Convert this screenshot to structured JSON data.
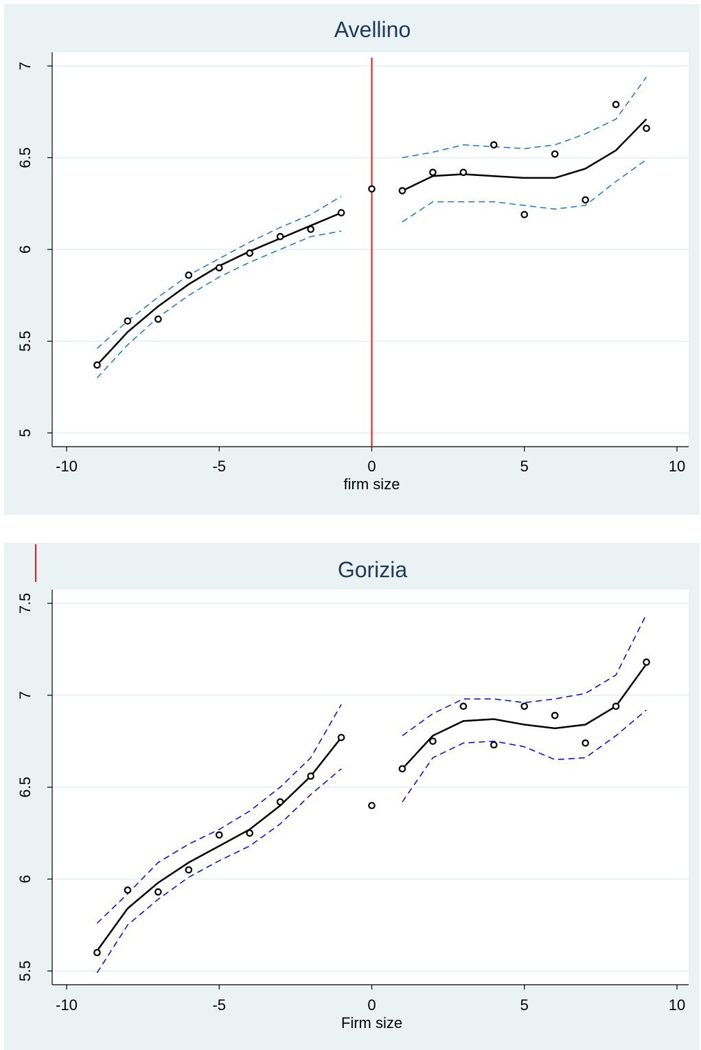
{
  "colors": {
    "panel_bg": "#eaf2f3",
    "plot_bg": "#ffffff",
    "grid": "#eaf2f3",
    "fit_line": "#000000",
    "ci_top": "#1a75cf",
    "ci_bottom": "#0000ff",
    "cutoff_line": "#e31a1c",
    "title": "#1e3a5f",
    "marker": "#000000"
  },
  "chart_data": [
    {
      "type": "scatter",
      "title": "Avellino",
      "xlabel": "firm size",
      "ylabel": "",
      "xlim": [
        -10,
        10
      ],
      "ylim": [
        5,
        7
      ],
      "xticks": [
        -10,
        -5,
        0,
        5,
        10
      ],
      "yticks": [
        5,
        5.5,
        6,
        6.5,
        7
      ],
      "grid": true,
      "cutoff": 0,
      "ci_color": "#1a75cf",
      "points": [
        [
          -9,
          5.37
        ],
        [
          -8,
          5.61
        ],
        [
          -7,
          5.62
        ],
        [
          -6,
          5.86
        ],
        [
          -5,
          5.9
        ],
        [
          -4,
          5.98
        ],
        [
          -3,
          6.07
        ],
        [
          -2,
          6.11
        ],
        [
          -1,
          6.2
        ],
        [
          0,
          6.33
        ],
        [
          1,
          6.32
        ],
        [
          2,
          6.42
        ],
        [
          3,
          6.42
        ],
        [
          4,
          6.57
        ],
        [
          5,
          6.19
        ],
        [
          6,
          6.52
        ],
        [
          7,
          6.27
        ],
        [
          8,
          6.79
        ],
        [
          9,
          6.66
        ]
      ],
      "fit_left": [
        [
          -9,
          5.37
        ],
        [
          -8,
          5.55
        ],
        [
          -7,
          5.69
        ],
        [
          -6,
          5.81
        ],
        [
          -5,
          5.91
        ],
        [
          -4,
          5.99
        ],
        [
          -3,
          6.06
        ],
        [
          -2,
          6.13
        ],
        [
          -1,
          6.2
        ]
      ],
      "ci_upper_left": [
        [
          -9,
          5.46
        ],
        [
          -8,
          5.61
        ],
        [
          -7,
          5.74
        ],
        [
          -6,
          5.86
        ],
        [
          -5,
          5.95
        ],
        [
          -4,
          6.04
        ],
        [
          -3,
          6.12
        ],
        [
          -2,
          6.19
        ],
        [
          -1,
          6.29
        ]
      ],
      "ci_lower_left": [
        [
          -9,
          5.3
        ],
        [
          -8,
          5.48
        ],
        [
          -7,
          5.63
        ],
        [
          -6,
          5.75
        ],
        [
          -5,
          5.85
        ],
        [
          -4,
          5.93
        ],
        [
          -3,
          6.0
        ],
        [
          -2,
          6.07
        ],
        [
          -1,
          6.1
        ]
      ],
      "fit_right": [
        [
          1,
          6.32
        ],
        [
          2,
          6.4
        ],
        [
          3,
          6.41
        ],
        [
          4,
          6.4
        ],
        [
          5,
          6.39
        ],
        [
          6,
          6.39
        ],
        [
          7,
          6.44
        ],
        [
          8,
          6.54
        ],
        [
          9,
          6.71
        ]
      ],
      "ci_upper_right": [
        [
          1,
          6.5
        ],
        [
          2,
          6.53
        ],
        [
          3,
          6.57
        ],
        [
          4,
          6.56
        ],
        [
          5,
          6.55
        ],
        [
          6,
          6.57
        ],
        [
          7,
          6.63
        ],
        [
          8,
          6.71
        ],
        [
          9,
          6.94
        ]
      ],
      "ci_lower_right": [
        [
          1,
          6.15
        ],
        [
          2,
          6.26
        ],
        [
          3,
          6.26
        ],
        [
          4,
          6.26
        ],
        [
          5,
          6.24
        ],
        [
          6,
          6.22
        ],
        [
          7,
          6.24
        ],
        [
          8,
          6.37
        ],
        [
          9,
          6.49
        ]
      ]
    },
    {
      "type": "scatter",
      "title": "Gorizia",
      "xlabel": "Firm size",
      "ylabel": "",
      "xlim": [
        -10,
        10
      ],
      "ylim": [
        5.5,
        7.5
      ],
      "xticks": [
        -10,
        -5,
        0,
        5,
        10
      ],
      "yticks": [
        5.5,
        6,
        6.5,
        7,
        7.5
      ],
      "grid": true,
      "ci_color": "#0000ff",
      "points": [
        [
          -9,
          5.6
        ],
        [
          -8,
          5.94
        ],
        [
          -7,
          5.93
        ],
        [
          -6,
          6.05
        ],
        [
          -5,
          6.24
        ],
        [
          -4,
          6.25
        ],
        [
          -3,
          6.42
        ],
        [
          -2,
          6.56
        ],
        [
          -1,
          6.77
        ],
        [
          0,
          6.4
        ],
        [
          1,
          6.6
        ],
        [
          2,
          6.75
        ],
        [
          3,
          6.94
        ],
        [
          4,
          6.73
        ],
        [
          5,
          6.94
        ],
        [
          6,
          6.89
        ],
        [
          7,
          6.74
        ],
        [
          8,
          6.94
        ],
        [
          9,
          7.18
        ]
      ],
      "fit_left": [
        [
          -9,
          5.61
        ],
        [
          -8,
          5.84
        ],
        [
          -7,
          5.98
        ],
        [
          -6,
          6.09
        ],
        [
          -5,
          6.18
        ],
        [
          -4,
          6.27
        ],
        [
          -3,
          6.4
        ],
        [
          -2,
          6.56
        ],
        [
          -1,
          6.77
        ]
      ],
      "ci_upper_left": [
        [
          -9,
          5.76
        ],
        [
          -8,
          5.92
        ],
        [
          -7,
          6.09
        ],
        [
          -6,
          6.19
        ],
        [
          -5,
          6.27
        ],
        [
          -4,
          6.37
        ],
        [
          -3,
          6.5
        ],
        [
          -2,
          6.66
        ],
        [
          -1,
          6.95
        ]
      ],
      "ci_lower_left": [
        [
          -9,
          5.49
        ],
        [
          -8,
          5.75
        ],
        [
          -7,
          5.89
        ],
        [
          -6,
          6.01
        ],
        [
          -5,
          6.1
        ],
        [
          -4,
          6.18
        ],
        [
          -3,
          6.3
        ],
        [
          -2,
          6.46
        ],
        [
          -1,
          6.6
        ]
      ],
      "fit_right": [
        [
          1,
          6.6
        ],
        [
          2,
          6.78
        ],
        [
          3,
          6.86
        ],
        [
          4,
          6.87
        ],
        [
          5,
          6.84
        ],
        [
          6,
          6.82
        ],
        [
          7,
          6.84
        ],
        [
          8,
          6.94
        ],
        [
          9,
          7.17
        ]
      ],
      "ci_upper_right": [
        [
          1,
          6.78
        ],
        [
          2,
          6.9
        ],
        [
          3,
          6.98
        ],
        [
          4,
          6.98
        ],
        [
          5,
          6.96
        ],
        [
          6,
          6.98
        ],
        [
          7,
          7.01
        ],
        [
          8,
          7.11
        ],
        [
          9,
          7.44
        ]
      ],
      "ci_lower_right": [
        [
          1,
          6.42
        ],
        [
          2,
          6.66
        ],
        [
          3,
          6.74
        ],
        [
          4,
          6.75
        ],
        [
          5,
          6.72
        ],
        [
          6,
          6.65
        ],
        [
          7,
          6.66
        ],
        [
          8,
          6.78
        ],
        [
          9,
          6.92
        ]
      ]
    }
  ]
}
